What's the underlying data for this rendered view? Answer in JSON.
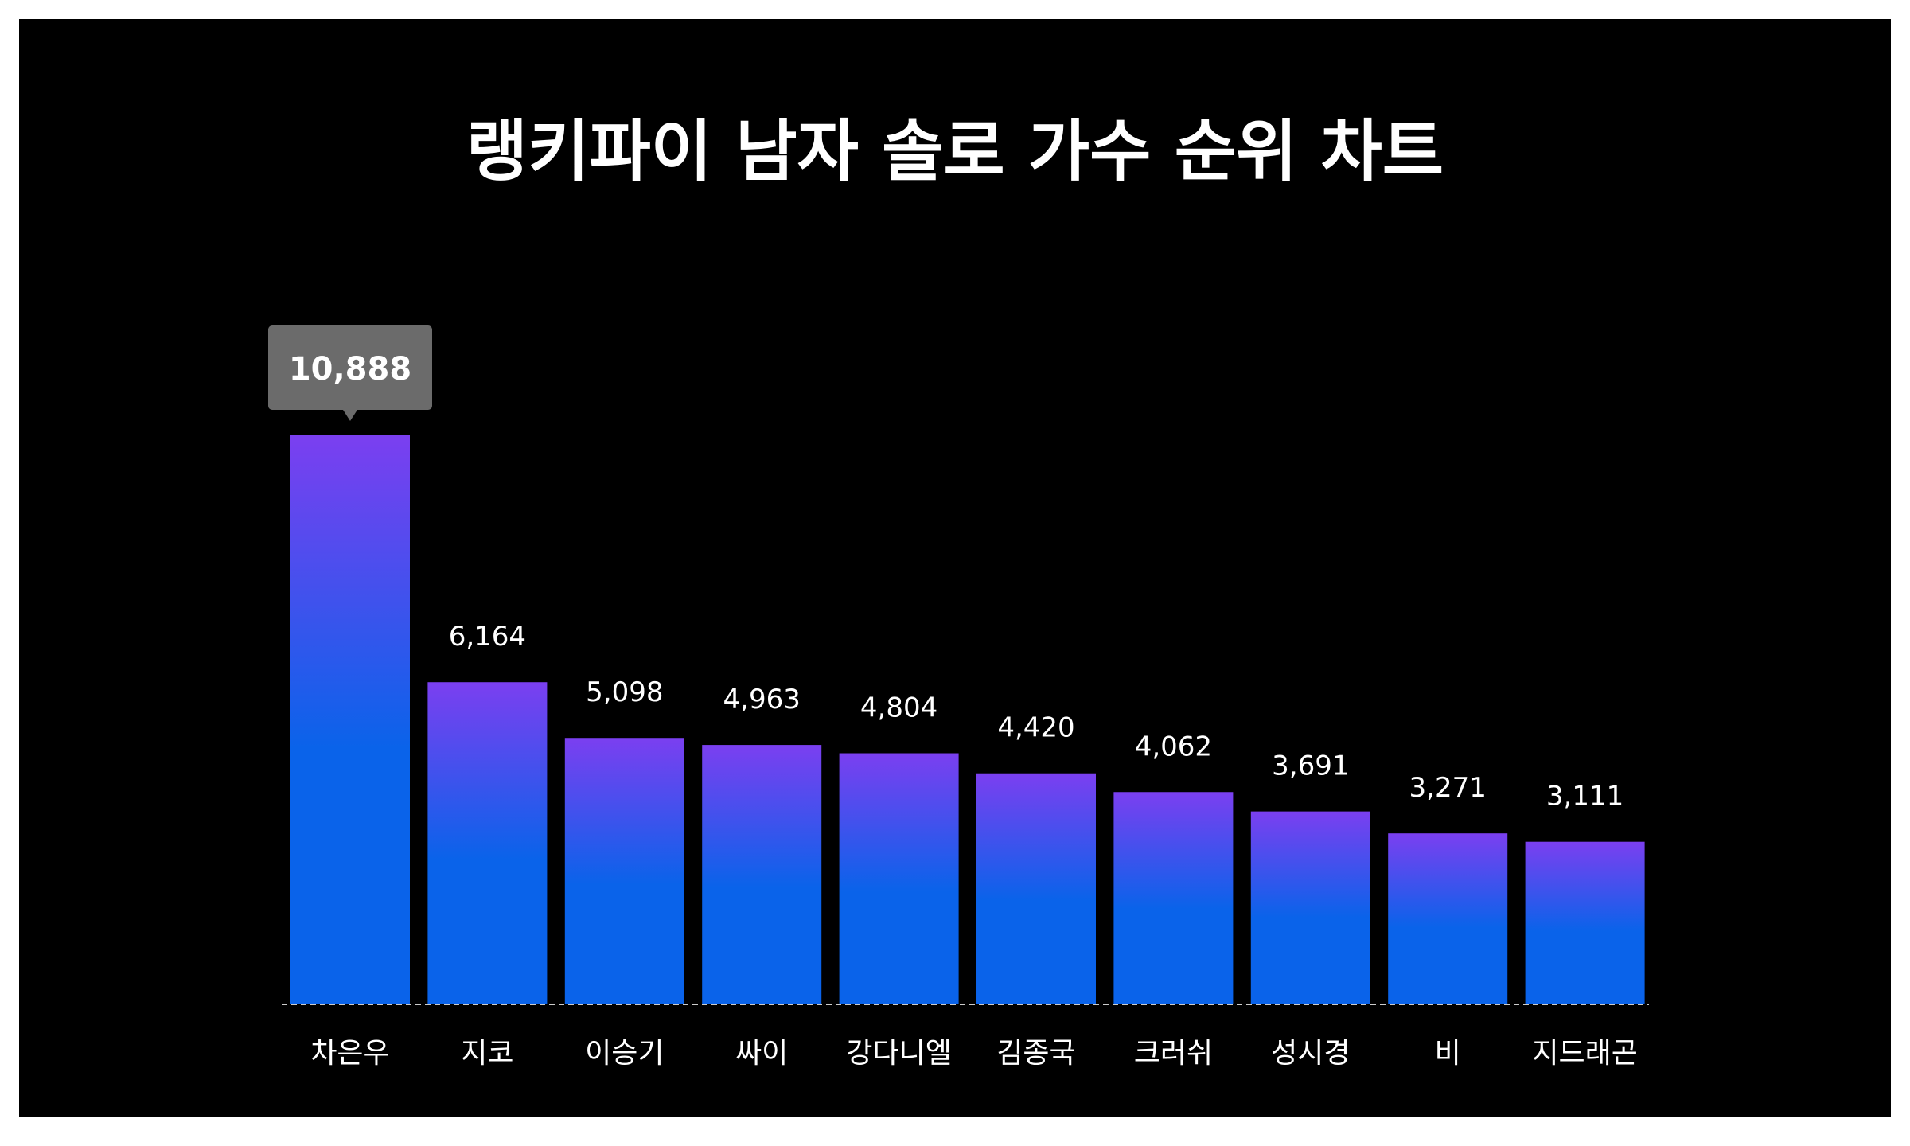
{
  "chart_data": {
    "type": "bar",
    "title": "랭키파이 남자 솔로 가수 순위 차트",
    "categories": [
      "차은우",
      "지코",
      "이승기",
      "싸이",
      "강다니엘",
      "김종국",
      "크러쉬",
      "성시경",
      "비",
      "지드래곤"
    ],
    "values": [
      10888,
      6164,
      5098,
      4963,
      4804,
      4420,
      4062,
      3691,
      3271,
      3111
    ],
    "value_labels": [
      "10,888",
      "6,164",
      "5,098",
      "4,963",
      "4,804",
      "4,420",
      "4,062",
      "3,691",
      "3,271",
      "3,111"
    ],
    "highlight_index": 0,
    "xlabel": "",
    "ylabel": "",
    "ylim": [
      0,
      10888
    ],
    "grid": false,
    "legend": "none",
    "colors": {
      "background": "#000000",
      "bar_top": "#7b3ff0",
      "bar_bottom": "#0a63ea",
      "text": "#ffffff",
      "tooltip_bg": "#6b6b6b",
      "baseline": "#cccccc"
    }
  }
}
